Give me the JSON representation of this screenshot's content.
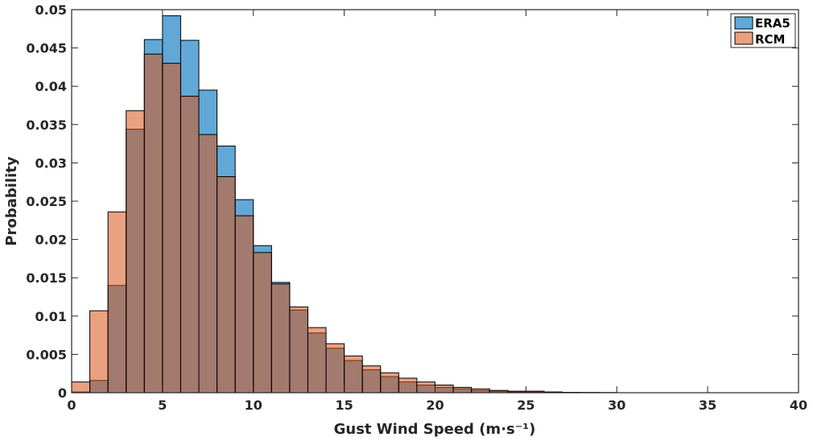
{
  "chart_data": {
    "type": "bar",
    "title": "",
    "xlabel": "Gust Wind Speed (m·s⁻¹)",
    "ylabel": "Probability",
    "xlim": [
      0,
      40
    ],
    "ylim": [
      0,
      0.05
    ],
    "xticks": [
      0,
      5,
      10,
      15,
      20,
      25,
      30,
      35,
      40
    ],
    "yticks": [
      0,
      0.005,
      0.01,
      0.015,
      0.02,
      0.025,
      0.03,
      0.035,
      0.04,
      0.045,
      0.05
    ],
    "ytick_labels": [
      "0",
      "0.005",
      "0.01",
      "0.015",
      "0.02",
      "0.025",
      "0.03",
      "0.035",
      "0.04",
      "0.045",
      "0.05"
    ],
    "bin_width": 1,
    "bin_starts": [
      0,
      1,
      2,
      3,
      4,
      5,
      6,
      7,
      8,
      9,
      10,
      11,
      12,
      13,
      14,
      15,
      16,
      17,
      18,
      19,
      20,
      21,
      22,
      23,
      24,
      25,
      26,
      27,
      28,
      29,
      30,
      31,
      32,
      33,
      34,
      35,
      36,
      37,
      38,
      39
    ],
    "grid": false,
    "legend_position": "top-right",
    "series": [
      {
        "name": "ERA5",
        "color": "#0072BD",
        "values": [
          0.0001,
          0.0016,
          0.014,
          0.0344,
          0.0461,
          0.0492,
          0.046,
          0.0395,
          0.0322,
          0.0252,
          0.0192,
          0.0144,
          0.0108,
          0.0078,
          0.0058,
          0.0042,
          0.003,
          0.0021,
          0.0014,
          0.001,
          0.0007,
          0.0005,
          0.0003,
          0.0002,
          0.0001,
          0.0001,
          5e-05,
          3e-05,
          2e-05,
          1e-05,
          0,
          0,
          0,
          0,
          0,
          0,
          0,
          0,
          0,
          0
        ]
      },
      {
        "name": "RCM",
        "color": "#D95319",
        "values": [
          0.0014,
          0.0107,
          0.0236,
          0.0368,
          0.0442,
          0.043,
          0.0387,
          0.0337,
          0.0282,
          0.0231,
          0.0183,
          0.0142,
          0.0112,
          0.0085,
          0.0064,
          0.0048,
          0.0035,
          0.0026,
          0.0019,
          0.0014,
          0.001,
          0.0007,
          0.0005,
          0.0003,
          0.0002,
          0.0002,
          0.0001,
          5e-05,
          3e-05,
          2e-05,
          0,
          0,
          0,
          0,
          0,
          0,
          0,
          0,
          0,
          0
        ]
      }
    ]
  }
}
